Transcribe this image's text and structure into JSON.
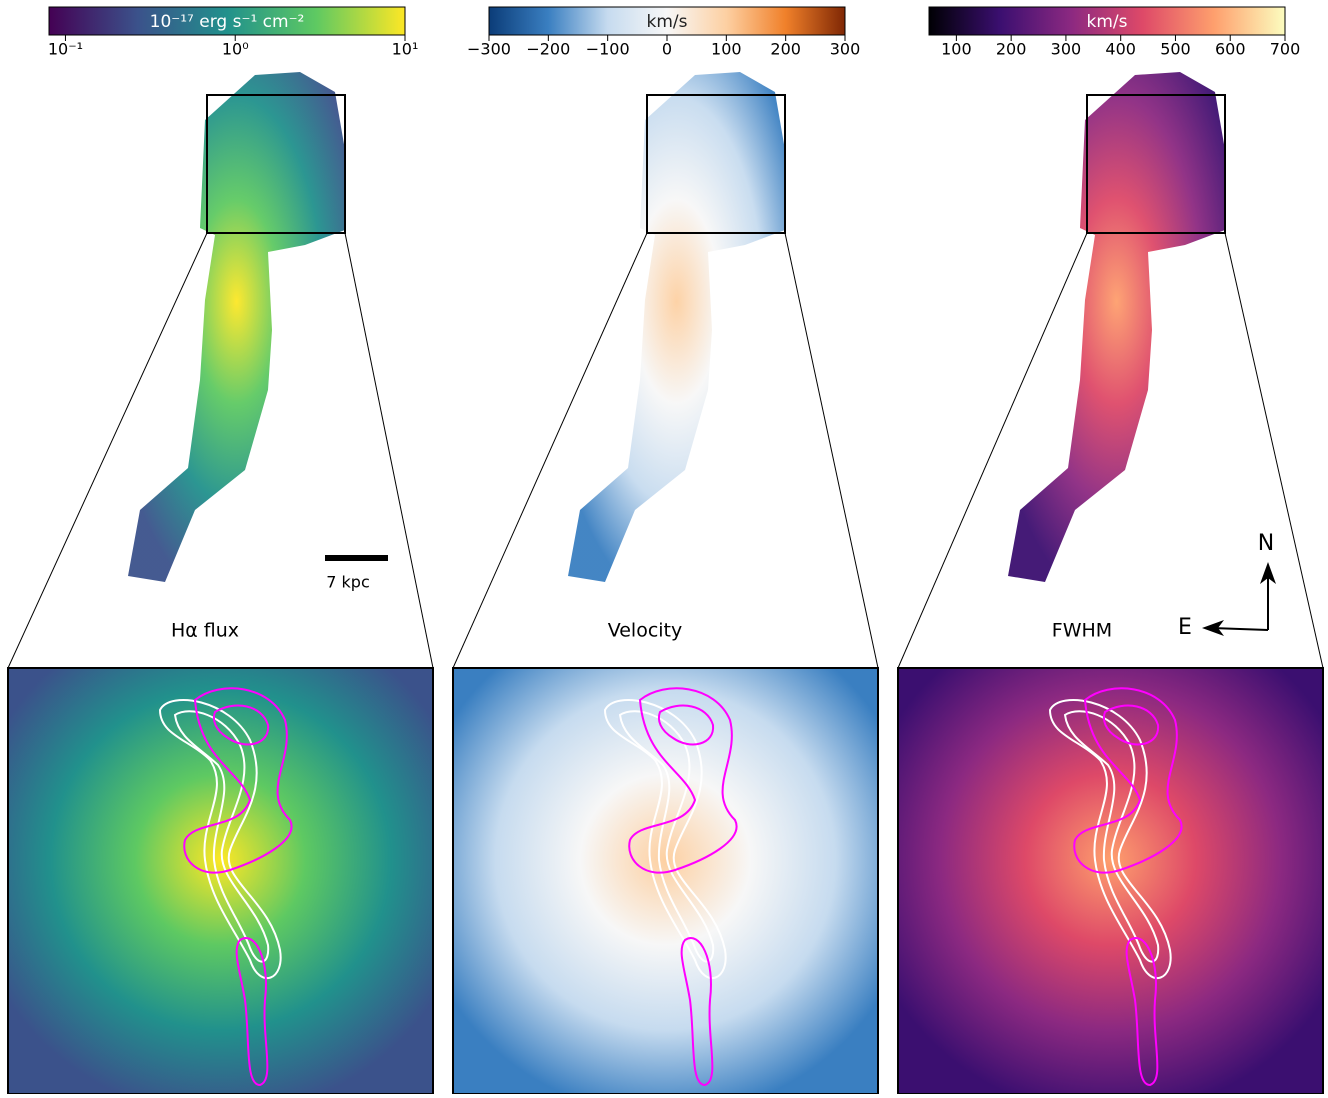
{
  "chart_data": [
    {
      "type": "colorbar",
      "title": "Hα flux",
      "label": "10⁻¹⁷ erg s⁻¹ cm⁻²",
      "log_scale": true,
      "colormap": [
        "#440154",
        "#3b528b",
        "#21918c",
        "#5ec962",
        "#fde725"
      ],
      "xlim": [
        0.08,
        10
      ],
      "xticks": [
        {
          "value": 0.1,
          "label": "10⁻¹"
        },
        {
          "value": 1,
          "label": "10⁰"
        },
        {
          "value": 10,
          "label": "10¹"
        }
      ]
    },
    {
      "type": "colorbar",
      "title": "Velocity",
      "label": "km/s",
      "log_scale": false,
      "colormap": [
        "#0b3c78",
        "#3a7fc1",
        "#c6dbef",
        "#f7f7f7",
        "#fdd0a2",
        "#f0802a",
        "#7f2704"
      ],
      "xlim": [
        -300,
        300
      ],
      "xticks": [
        {
          "value": -300,
          "label": "−300"
        },
        {
          "value": -200,
          "label": "−200"
        },
        {
          "value": -100,
          "label": "−100"
        },
        0,
        100,
        200,
        300
      ]
    },
    {
      "type": "colorbar",
      "title": "FWHM",
      "label": "km/s",
      "log_scale": false,
      "colormap": [
        "#000004",
        "#3b0f70",
        "#8c2981",
        "#de4968",
        "#fe9f6d",
        "#fcfdbf"
      ],
      "xlim": [
        50,
        700
      ],
      "xticks": [
        100,
        200,
        300,
        400,
        500,
        600,
        700
      ]
    }
  ],
  "annotations": {
    "scale_bar": "7 kpc",
    "north": "N",
    "east": "E"
  }
}
